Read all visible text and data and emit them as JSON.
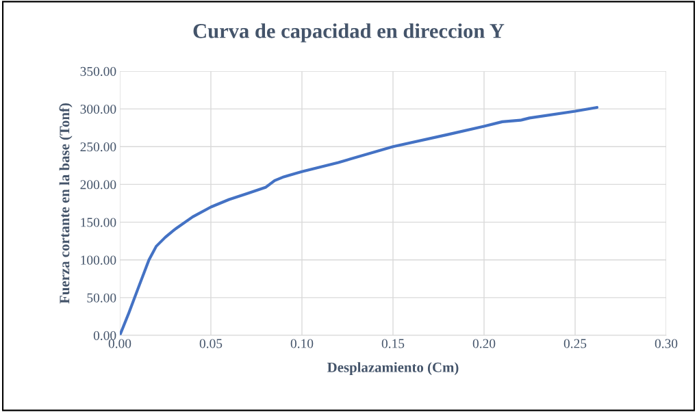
{
  "chart_data": {
    "type": "line",
    "title": "Curva de capacidad en direccion Y",
    "xlabel": "Desplazamiento (Cm)",
    "ylabel": "Fuerza cortante en la base (Tonf)",
    "x": [
      0,
      0.005,
      0.01,
      0.016,
      0.02,
      0.025,
      0.03,
      0.04,
      0.05,
      0.06,
      0.07,
      0.08,
      0.085,
      0.09,
      0.1,
      0.12,
      0.15,
      0.18,
      0.2,
      0.21,
      0.22,
      0.225,
      0.25,
      0.262
    ],
    "series": [
      {
        "color": "#4472c4",
        "values": [
          0,
          30,
          62,
          100,
          118,
          130,
          140,
          157,
          170,
          180,
          188,
          196,
          205,
          210,
          217,
          229,
          250,
          266,
          277,
          283,
          285,
          288,
          297,
          302
        ]
      }
    ],
    "xlim": [
      0,
      0.3
    ],
    "xticks": [
      {
        "value": 0,
        "label": "0.00"
      },
      {
        "value": 0.05,
        "label": "0.05"
      },
      {
        "value": 0.1,
        "label": "0.10"
      },
      {
        "value": 0.15,
        "label": "0.15"
      },
      {
        "value": 0.2,
        "label": "0.20"
      },
      {
        "value": 0.25,
        "label": "0.25"
      },
      {
        "value": 0.3,
        "label": "0.30"
      }
    ],
    "ylim": [
      0,
      350
    ],
    "yticks": [
      {
        "value": 0,
        "label": "0.00"
      },
      {
        "value": 50,
        "label": "50.00"
      },
      {
        "value": 100,
        "label": "100.00"
      },
      {
        "value": 150,
        "label": "150.00"
      },
      {
        "value": 200,
        "label": "200.00"
      },
      {
        "value": 250,
        "label": "250.00"
      },
      {
        "value": 300,
        "label": "300.00"
      },
      {
        "value": 350,
        "label": "350.00"
      }
    ],
    "grid": true,
    "marker": "none",
    "line_style": "solid"
  }
}
